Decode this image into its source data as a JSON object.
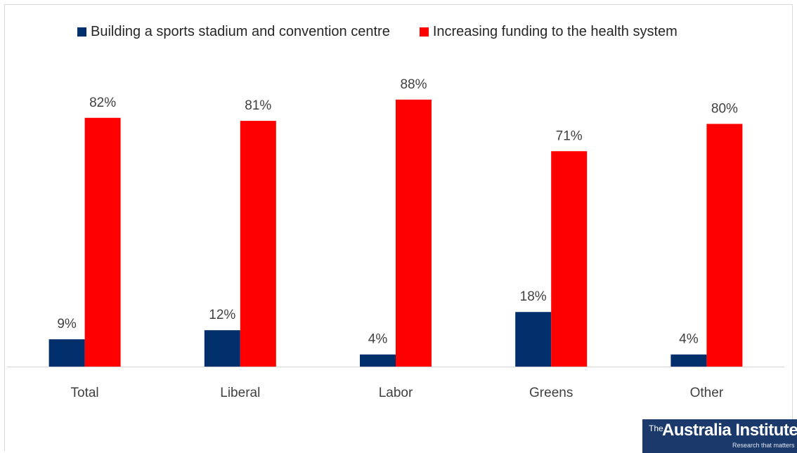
{
  "chart_data": {
    "type": "bar",
    "categories": [
      "Total",
      "Liberal",
      "Labor",
      "Greens",
      "Other"
    ],
    "series": [
      {
        "name": "Building a sports stadium and convention centre",
        "values": [
          9,
          12,
          4,
          18,
          4
        ],
        "labels": [
          "9%",
          "12%",
          "4%",
          "18%",
          "4%"
        ],
        "color": "#002f6c"
      },
      {
        "name": "Increasing funding to the health system",
        "values": [
          82,
          81,
          88,
          71,
          80
        ],
        "labels": [
          "82%",
          "81%",
          "88%",
          "71%",
          "80%"
        ],
        "color": "#ff0000"
      }
    ],
    "ylim": [
      0,
      100
    ],
    "grid": false,
    "legend_position": "top"
  },
  "logo": {
    "the": "The",
    "name": "Australia Institute",
    "tagline": "Research that matters"
  }
}
